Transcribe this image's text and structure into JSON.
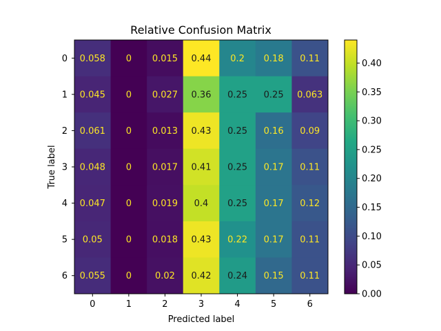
{
  "chart_data": {
    "type": "heatmap",
    "title": "Relative Confusion Matrix",
    "xlabel": "Predicted label",
    "ylabel": "True label",
    "x_categories": [
      "0",
      "1",
      "2",
      "3",
      "4",
      "5",
      "6"
    ],
    "y_categories": [
      "0",
      "1",
      "2",
      "3",
      "4",
      "5",
      "6"
    ],
    "values": [
      [
        0.058,
        0,
        0.015,
        0.44,
        0.2,
        0.18,
        0.11
      ],
      [
        0.045,
        0,
        0.027,
        0.36,
        0.25,
        0.25,
        0.063
      ],
      [
        0.061,
        0,
        0.013,
        0.43,
        0.25,
        0.16,
        0.09
      ],
      [
        0.048,
        0,
        0.017,
        0.41,
        0.25,
        0.17,
        0.11
      ],
      [
        0.047,
        0,
        0.019,
        0.4,
        0.25,
        0.17,
        0.12
      ],
      [
        0.05,
        0,
        0.018,
        0.43,
        0.22,
        0.17,
        0.11
      ],
      [
        0.055,
        0,
        0.02,
        0.42,
        0.24,
        0.15,
        0.11
      ]
    ],
    "colormap": "viridis",
    "colorbar": {
      "range": [
        0,
        0.44
      ],
      "ticks": [
        0.0,
        0.05,
        0.1,
        0.15,
        0.2,
        0.25,
        0.3,
        0.35,
        0.4
      ],
      "tick_labels": [
        "0.00",
        "0.05",
        "0.10",
        "0.15",
        "0.20",
        "0.25",
        "0.30",
        "0.35",
        "0.40"
      ]
    },
    "annotation_colors": {
      "light": "#fde725",
      "dark": "#1a1a1a"
    }
  }
}
